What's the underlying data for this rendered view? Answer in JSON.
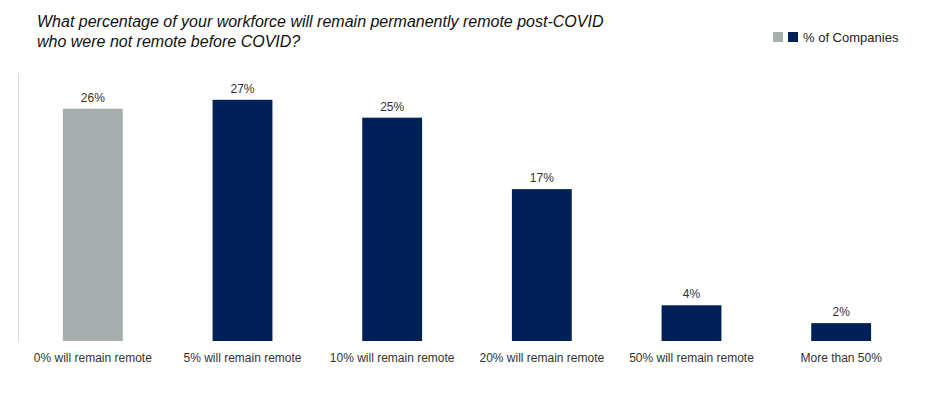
{
  "chart_data": {
    "type": "bar",
    "title": "What percentage of your workforce will remain permanently remote post-COVID who were not remote before COVID?",
    "categories": [
      "0% will remain remote",
      "5% will remain remote",
      "10% will remain remote",
      "20% will remain remote",
      "50% will remain remote",
      "More than 50%"
    ],
    "series": [
      {
        "name": "% of Companies",
        "values": [
          26,
          27,
          25,
          17,
          4,
          2
        ],
        "value_labels": [
          "26%",
          "27%",
          "25%",
          "17%",
          "4%",
          "2%"
        ]
      }
    ],
    "colors": [
      "#a5adad",
      "#002157",
      "#002157",
      "#002157",
      "#002157",
      "#002157"
    ],
    "ylim": [
      0,
      30
    ],
    "yticks": [],
    "xticks": [],
    "tick_labels": "x",
    "data_labels": true,
    "grid": false,
    "legend": "top-right"
  }
}
